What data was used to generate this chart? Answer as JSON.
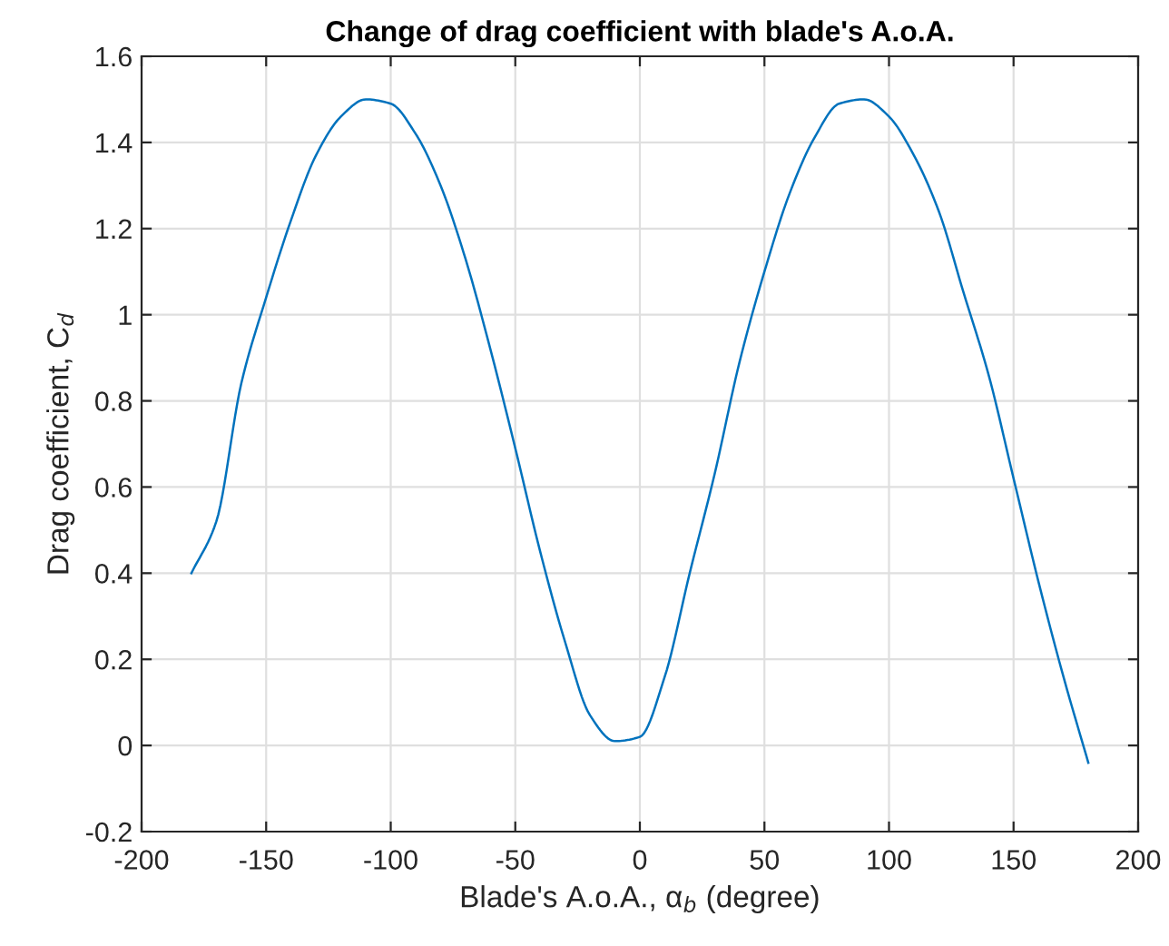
{
  "chart_data": {
    "type": "line",
    "title": "Change of drag coefficient with blade's A.o.A.",
    "xlabel": "Blade's A.o.A., α$_{b}$ (degree)",
    "ylabel": "Drag coefficient, C$_{d}$",
    "x": [
      -180,
      -170,
      -160,
      -150,
      -140,
      -130,
      -120,
      -110,
      -100,
      -90,
      -80,
      -70,
      -60,
      -50,
      -40,
      -30,
      -20,
      -10,
      0,
      10,
      20,
      30,
      40,
      50,
      60,
      70,
      80,
      90,
      100,
      110,
      120,
      130,
      140,
      150,
      160,
      170,
      180
    ],
    "series": [
      {
        "color": "#0072bd",
        "values": [
          0.4,
          0.52,
          0.84,
          1.04,
          1.22,
          1.37,
          1.46,
          1.5,
          1.49,
          1.42,
          1.3,
          1.13,
          0.92,
          0.69,
          0.45,
          0.24,
          0.07,
          0.01,
          0.02,
          0.16,
          0.4,
          0.63,
          0.89,
          1.1,
          1.28,
          1.41,
          1.49,
          1.5,
          1.46,
          1.37,
          1.24,
          1.05,
          0.86,
          0.62,
          0.38,
          0.16,
          -0.04
        ]
      }
    ],
    "xlim": [
      -200,
      200
    ],
    "xticks": [
      -200,
      -150,
      -100,
      -50,
      0,
      50,
      100,
      150,
      200
    ],
    "ylim": [
      -0.2,
      1.6
    ],
    "yticks": [
      {
        "value": -0.2,
        "label": "-0.2"
      },
      0,
      {
        "value": 0.2,
        "label": "0.2"
      },
      {
        "value": 0.4,
        "label": "0.4"
      },
      {
        "value": 0.6,
        "label": "0.6"
      },
      {
        "value": 0.8,
        "label": "0.8"
      },
      1,
      {
        "value": 1.2,
        "label": "1.2"
      },
      {
        "value": 1.4,
        "label": "1.4"
      },
      {
        "value": 1.6,
        "label": "1.6"
      }
    ],
    "grid": true,
    "marker": "none",
    "line_style": "solid"
  }
}
